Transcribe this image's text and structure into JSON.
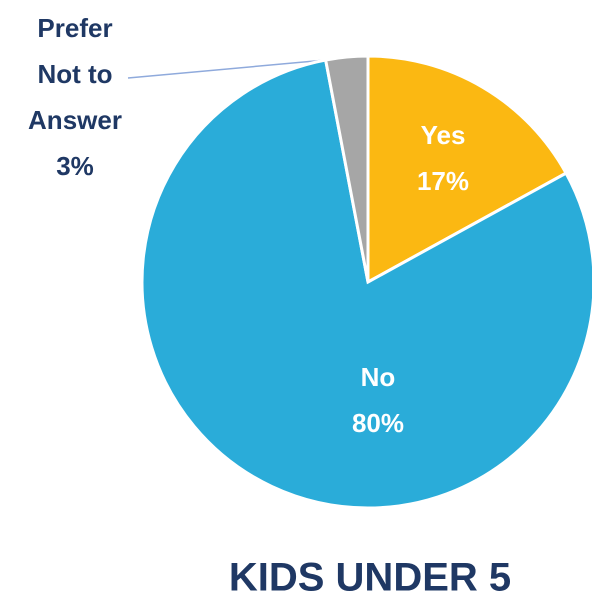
{
  "chart_data": {
    "type": "pie",
    "title": "KIDS UNDER 5",
    "categories": [
      "Yes",
      "No",
      "Prefer Not to Answer"
    ],
    "values": [
      17,
      80,
      3
    ],
    "value_labels": [
      "17%",
      "80%",
      "3%"
    ],
    "colors": [
      "#fbb812",
      "#2aacd9",
      "#a6a6a6"
    ]
  }
}
